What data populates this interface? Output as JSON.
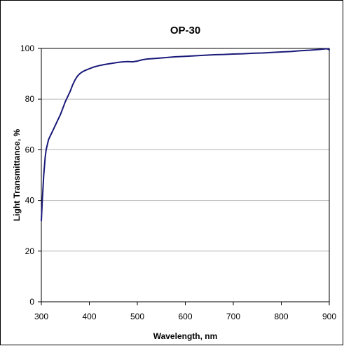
{
  "chart_data": {
    "type": "line",
    "title": "OP-30",
    "xlabel": "Wavelength, nm",
    "ylabel": "Light Transmittance, %",
    "xlim": [
      300,
      900
    ],
    "ylim": [
      0,
      100
    ],
    "xticks": [
      300,
      400,
      500,
      600,
      700,
      800,
      900
    ],
    "yticks": [
      0,
      20,
      40,
      60,
      80,
      100
    ],
    "grid": "horizontal",
    "legend": "none",
    "line_color": "#1a1a7a",
    "series": [
      {
        "x": [
          300,
          302,
          305,
          308,
          310,
          315,
          320,
          325,
          330,
          340,
          350,
          355,
          360,
          365,
          370,
          375,
          380,
          385,
          390,
          395,
          400,
          410,
          420,
          430,
          440,
          450,
          460,
          470,
          480,
          490,
          500,
          510,
          520,
          540,
          560,
          580,
          600,
          620,
          640,
          660,
          680,
          700,
          720,
          740,
          760,
          780,
          800,
          820,
          840,
          860,
          880,
          890,
          895,
          900
        ],
        "y": [
          32,
          40,
          50,
          57,
          60,
          64,
          66,
          68,
          70,
          74,
          79,
          81,
          83,
          85.5,
          87.5,
          89,
          90,
          90.7,
          91.2,
          91.6,
          92,
          92.7,
          93.2,
          93.6,
          93.9,
          94.2,
          94.5,
          94.7,
          94.8,
          94.7,
          95,
          95.5,
          95.8,
          96.1,
          96.4,
          96.7,
          96.9,
          97.1,
          97.3,
          97.5,
          97.6,
          97.8,
          97.9,
          98.1,
          98.2,
          98.4,
          98.6,
          98.8,
          99.1,
          99.3,
          99.6,
          99.8,
          99.9,
          99.5
        ]
      }
    ]
  }
}
